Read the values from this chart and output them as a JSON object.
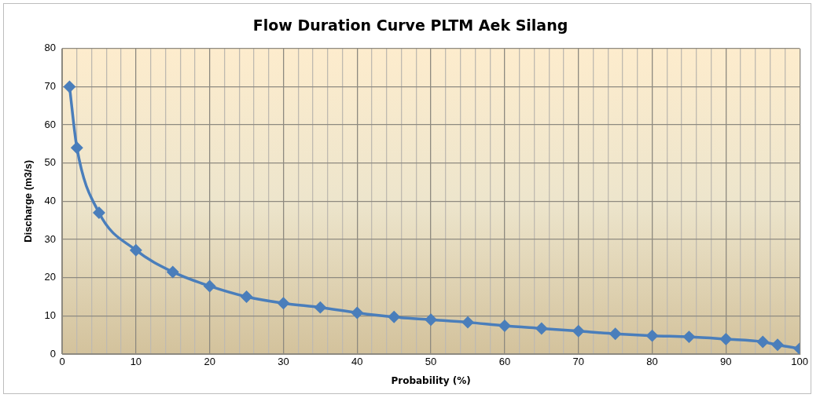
{
  "chart_data": {
    "type": "line",
    "title": "Flow Duration Curve PLTM Aek Silang",
    "xlabel": "Probability (%)",
    "ylabel": "Discharge (m3/s)",
    "x": [
      1,
      2,
      5,
      10,
      15,
      20,
      25,
      30,
      35,
      40,
      45,
      50,
      55,
      60,
      65,
      70,
      75,
      80,
      85,
      90,
      95,
      97,
      100
    ],
    "series": [
      {
        "color": "#4a7ebb",
        "values": [
          70,
          54,
          37,
          27.2,
          21.5,
          17.8,
          15,
          13.3,
          12.2,
          10.8,
          9.7,
          9,
          8.3,
          7.4,
          6.7,
          6,
          5.3,
          4.8,
          4.5,
          3.9,
          3.2,
          2.4,
          1.4
        ]
      }
    ],
    "xlim": [
      0,
      100
    ],
    "ylim": [
      0,
      80
    ],
    "xticks": [
      0,
      {
        "value": 2,
        "label": null
      },
      {
        "value": 4,
        "label": null
      },
      {
        "value": 6,
        "label": null
      },
      {
        "value": 8,
        "label": null
      },
      10,
      {
        "value": 12,
        "label": null
      },
      {
        "value": 14,
        "label": null
      },
      {
        "value": 16,
        "label": null
      },
      {
        "value": 18,
        "label": null
      },
      20,
      {
        "value": 22,
        "label": null
      },
      {
        "value": 24,
        "label": null
      },
      {
        "value": 26,
        "label": null
      },
      {
        "value": 28,
        "label": null
      },
      30,
      {
        "value": 32,
        "label": null
      },
      {
        "value": 34,
        "label": null
      },
      {
        "value": 36,
        "label": null
      },
      {
        "value": 38,
        "label": null
      },
      40,
      {
        "value": 42,
        "label": null
      },
      {
        "value": 44,
        "label": null
      },
      {
        "value": 46,
        "label": null
      },
      {
        "value": 48,
        "label": null
      },
      50,
      {
        "value": 52,
        "label": null
      },
      {
        "value": 54,
        "label": null
      },
      {
        "value": 56,
        "label": null
      },
      {
        "value": 58,
        "label": null
      },
      60,
      {
        "value": 62,
        "label": null
      },
      {
        "value": 64,
        "label": null
      },
      {
        "value": 66,
        "label": null
      },
      {
        "value": 68,
        "label": null
      },
      70,
      {
        "value": 72,
        "label": null
      },
      {
        "value": 74,
        "label": null
      },
      {
        "value": 76,
        "label": null
      },
      {
        "value": 78,
        "label": null
      },
      80,
      {
        "value": 82,
        "label": null
      },
      {
        "value": 84,
        "label": null
      },
      {
        "value": 86,
        "label": null
      },
      {
        "value": 88,
        "label": null
      },
      90,
      {
        "value": 92,
        "label": null
      },
      {
        "value": 94,
        "label": null
      },
      {
        "value": 96,
        "label": null
      },
      {
        "value": 98,
        "label": null
      },
      100
    ],
    "yticks": [
      0,
      10,
      20,
      30,
      40,
      50,
      60,
      70,
      80
    ],
    "grid": true,
    "legend": false,
    "marker": "diamond",
    "line_style": "solid"
  }
}
